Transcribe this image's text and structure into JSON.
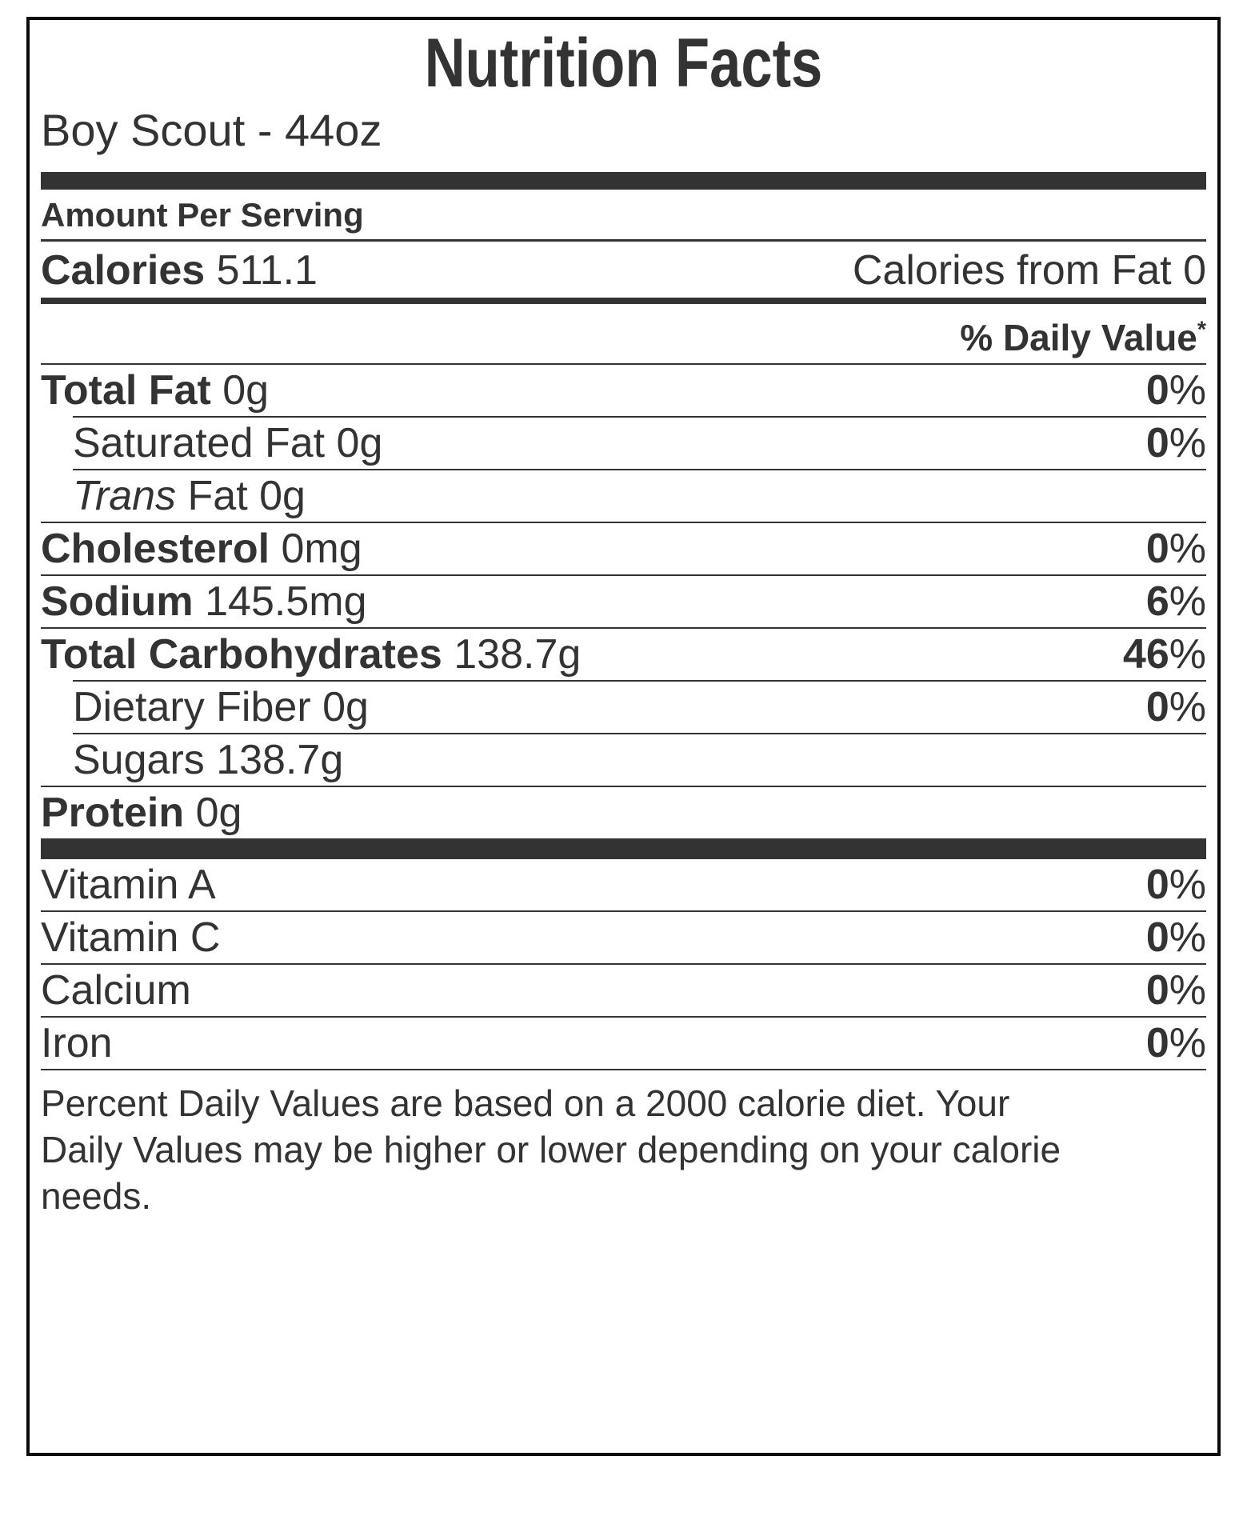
{
  "label": {
    "title": "Nutrition Facts",
    "product": "Boy Scout - 44oz",
    "amount_per_serving": "Amount Per Serving",
    "calories": {
      "label": "Calories",
      "value": "511.1",
      "from_fat_label": "Calories from Fat",
      "from_fat_value": "0"
    },
    "daily_value_header": "% Daily Value",
    "daily_value_asterisk": "*",
    "percent_sign": "%",
    "nutrients": [
      {
        "name": "Total Fat",
        "amount": "0g",
        "dv": "0",
        "bold": true,
        "indent": false
      },
      {
        "name": "Saturated Fat",
        "amount": "0g",
        "dv": "0",
        "bold": false,
        "indent": true
      },
      {
        "name_italic": "Trans",
        "name": " Fat",
        "amount": "0g",
        "dv": "",
        "bold": false,
        "indent": true
      },
      {
        "name": "Cholesterol",
        "amount": "0mg",
        "dv": "0",
        "bold": true,
        "indent": false
      },
      {
        "name": "Sodium",
        "amount": "145.5mg",
        "dv": "6",
        "bold": true,
        "indent": false
      },
      {
        "name": "Total Carbohydrates",
        "amount": "138.7g",
        "dv": "46",
        "bold": true,
        "indent": false
      },
      {
        "name": "Dietary Fiber",
        "amount": "0g",
        "dv": "0",
        "bold": false,
        "indent": true
      },
      {
        "name": "Sugars",
        "amount": "138.7g",
        "dv": "",
        "bold": false,
        "indent": true
      },
      {
        "name": "Protein",
        "amount": "0g",
        "dv": "",
        "bold": true,
        "indent": false
      }
    ],
    "micronutrients": [
      {
        "name": "Vitamin A",
        "dv": "0"
      },
      {
        "name": "Vitamin C",
        "dv": "0"
      },
      {
        "name": "Calcium",
        "dv": "0"
      },
      {
        "name": "Iron",
        "dv": "0"
      }
    ],
    "footnote_lines": [
      "Percent Daily Values are based on a 2000 calorie diet. Your",
      "Daily Values may be higher or lower depending on your calorie",
      "needs."
    ]
  },
  "colors": {
    "text": "#333333",
    "line": "#333333",
    "bar": "#333333",
    "border": "#0a0a0a",
    "background": "#ffffff"
  }
}
